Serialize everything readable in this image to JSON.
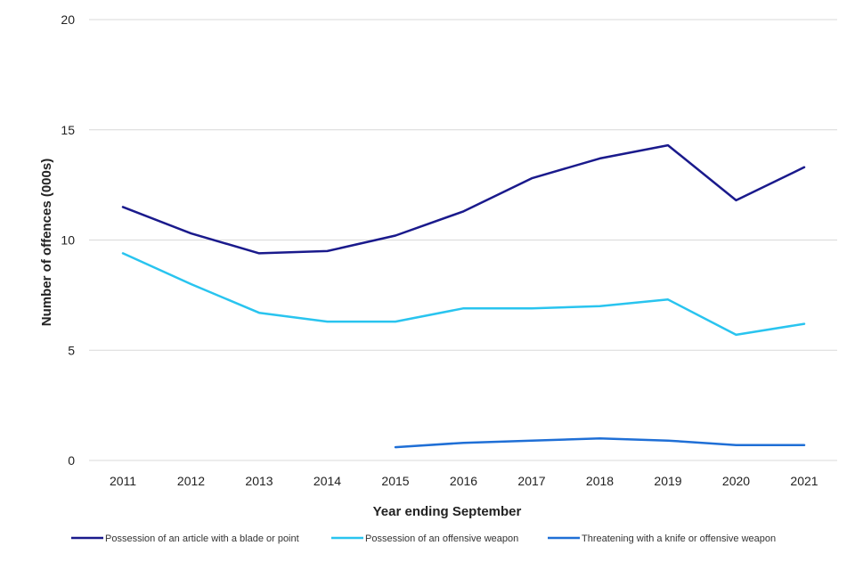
{
  "chart_data": {
    "type": "line",
    "title": "",
    "xlabel": "Year ending September",
    "ylabel": "Number of offences (000s)",
    "ylim": [
      0,
      20
    ],
    "yticks": [
      0,
      5,
      10,
      15,
      20
    ],
    "grid": true,
    "legend_position": "bottom",
    "categories": [
      "2011",
      "2012",
      "2013",
      "2014",
      "2015",
      "2016",
      "2017",
      "2018",
      "2019",
      "2020",
      "2021"
    ],
    "series": [
      {
        "name": "Possession of an article with a blade or point",
        "color": "#1a1a8c",
        "values": [
          11.5,
          10.3,
          9.4,
          9.5,
          10.2,
          11.3,
          12.8,
          13.7,
          14.3,
          11.8,
          13.3
        ]
      },
      {
        "name": "Possession of an offensive weapon",
        "color": "#29c4ef",
        "values": [
          9.4,
          8.0,
          6.7,
          6.3,
          6.3,
          6.9,
          6.9,
          7.0,
          7.3,
          5.7,
          6.2
        ]
      },
      {
        "name": "Threatening with a knife or offensive weapon",
        "color": "#1f6fd6",
        "values": [
          null,
          null,
          null,
          null,
          0.6,
          0.8,
          0.9,
          1.0,
          0.9,
          0.7,
          0.7
        ]
      }
    ]
  }
}
